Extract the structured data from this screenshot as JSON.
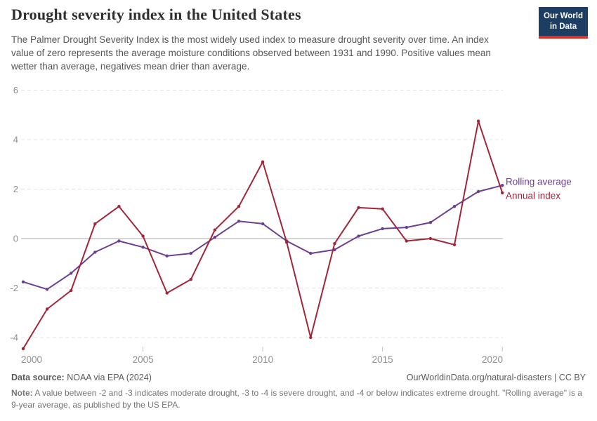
{
  "header": {
    "title": "Drought severity index in the United States",
    "subtitle": "The Palmer Drought Severity Index is the most widely used index to measure drought severity over time. An index value of zero represents the average moisture conditions observed between 1931 and 1990. Positive values mean wetter than average, negatives mean drier than average.",
    "logo": {
      "line1": "Our World",
      "line2": "in Data",
      "bg_color": "#1d3d63",
      "accent_color": "#d8332b"
    }
  },
  "chart_data": {
    "type": "line",
    "title": "Drought severity index in the United States",
    "x": [
      2000,
      2001,
      2002,
      2003,
      2004,
      2005,
      2006,
      2007,
      2008,
      2009,
      2010,
      2011,
      2012,
      2013,
      2014,
      2015,
      2016,
      2017,
      2018,
      2019,
      2020
    ],
    "series": [
      {
        "name": "Annual index",
        "color": "#a12639",
        "values": [
          -4.45,
          -2.85,
          -2.1,
          0.6,
          1.3,
          0.1,
          -2.2,
          -1.65,
          0.35,
          1.3,
          3.1,
          -0.15,
          -4.0,
          -0.2,
          1.25,
          1.2,
          -0.1,
          0.0,
          -0.25,
          4.75,
          1.85
        ]
      },
      {
        "name": "Rolling average",
        "color": "#6d3e91",
        "values": [
          -1.75,
          -2.05,
          -1.4,
          -0.55,
          -0.1,
          -0.35,
          -0.7,
          -0.6,
          0.05,
          0.7,
          0.6,
          -0.1,
          -0.6,
          -0.45,
          0.1,
          0.4,
          0.45,
          0.65,
          1.3,
          1.9,
          2.15
        ]
      }
    ],
    "xlabel": "",
    "ylabel": "",
    "ylim": [
      -5,
      6.3
    ],
    "yticks": [
      6,
      4,
      2,
      0,
      -2,
      -4
    ],
    "xticks": [
      2000,
      2005,
      2010,
      2015,
      2020
    ],
    "grid": "horizontal dashed, solid line at zero",
    "legend_position": "right of line ends"
  },
  "footer": {
    "datasource_label": "Data source:",
    "datasource_value": " NOAA via EPA (2024)",
    "link": "OurWorldinData.org/natural-disasters | CC BY",
    "note_label": "Note:",
    "note_value": " A value between -2 and -3 indicates moderate drought, -3 to -4 is severe drought, and -4 or below indicates extreme drought. \"Rolling average\" is a 9-year average, as published by the US EPA."
  }
}
